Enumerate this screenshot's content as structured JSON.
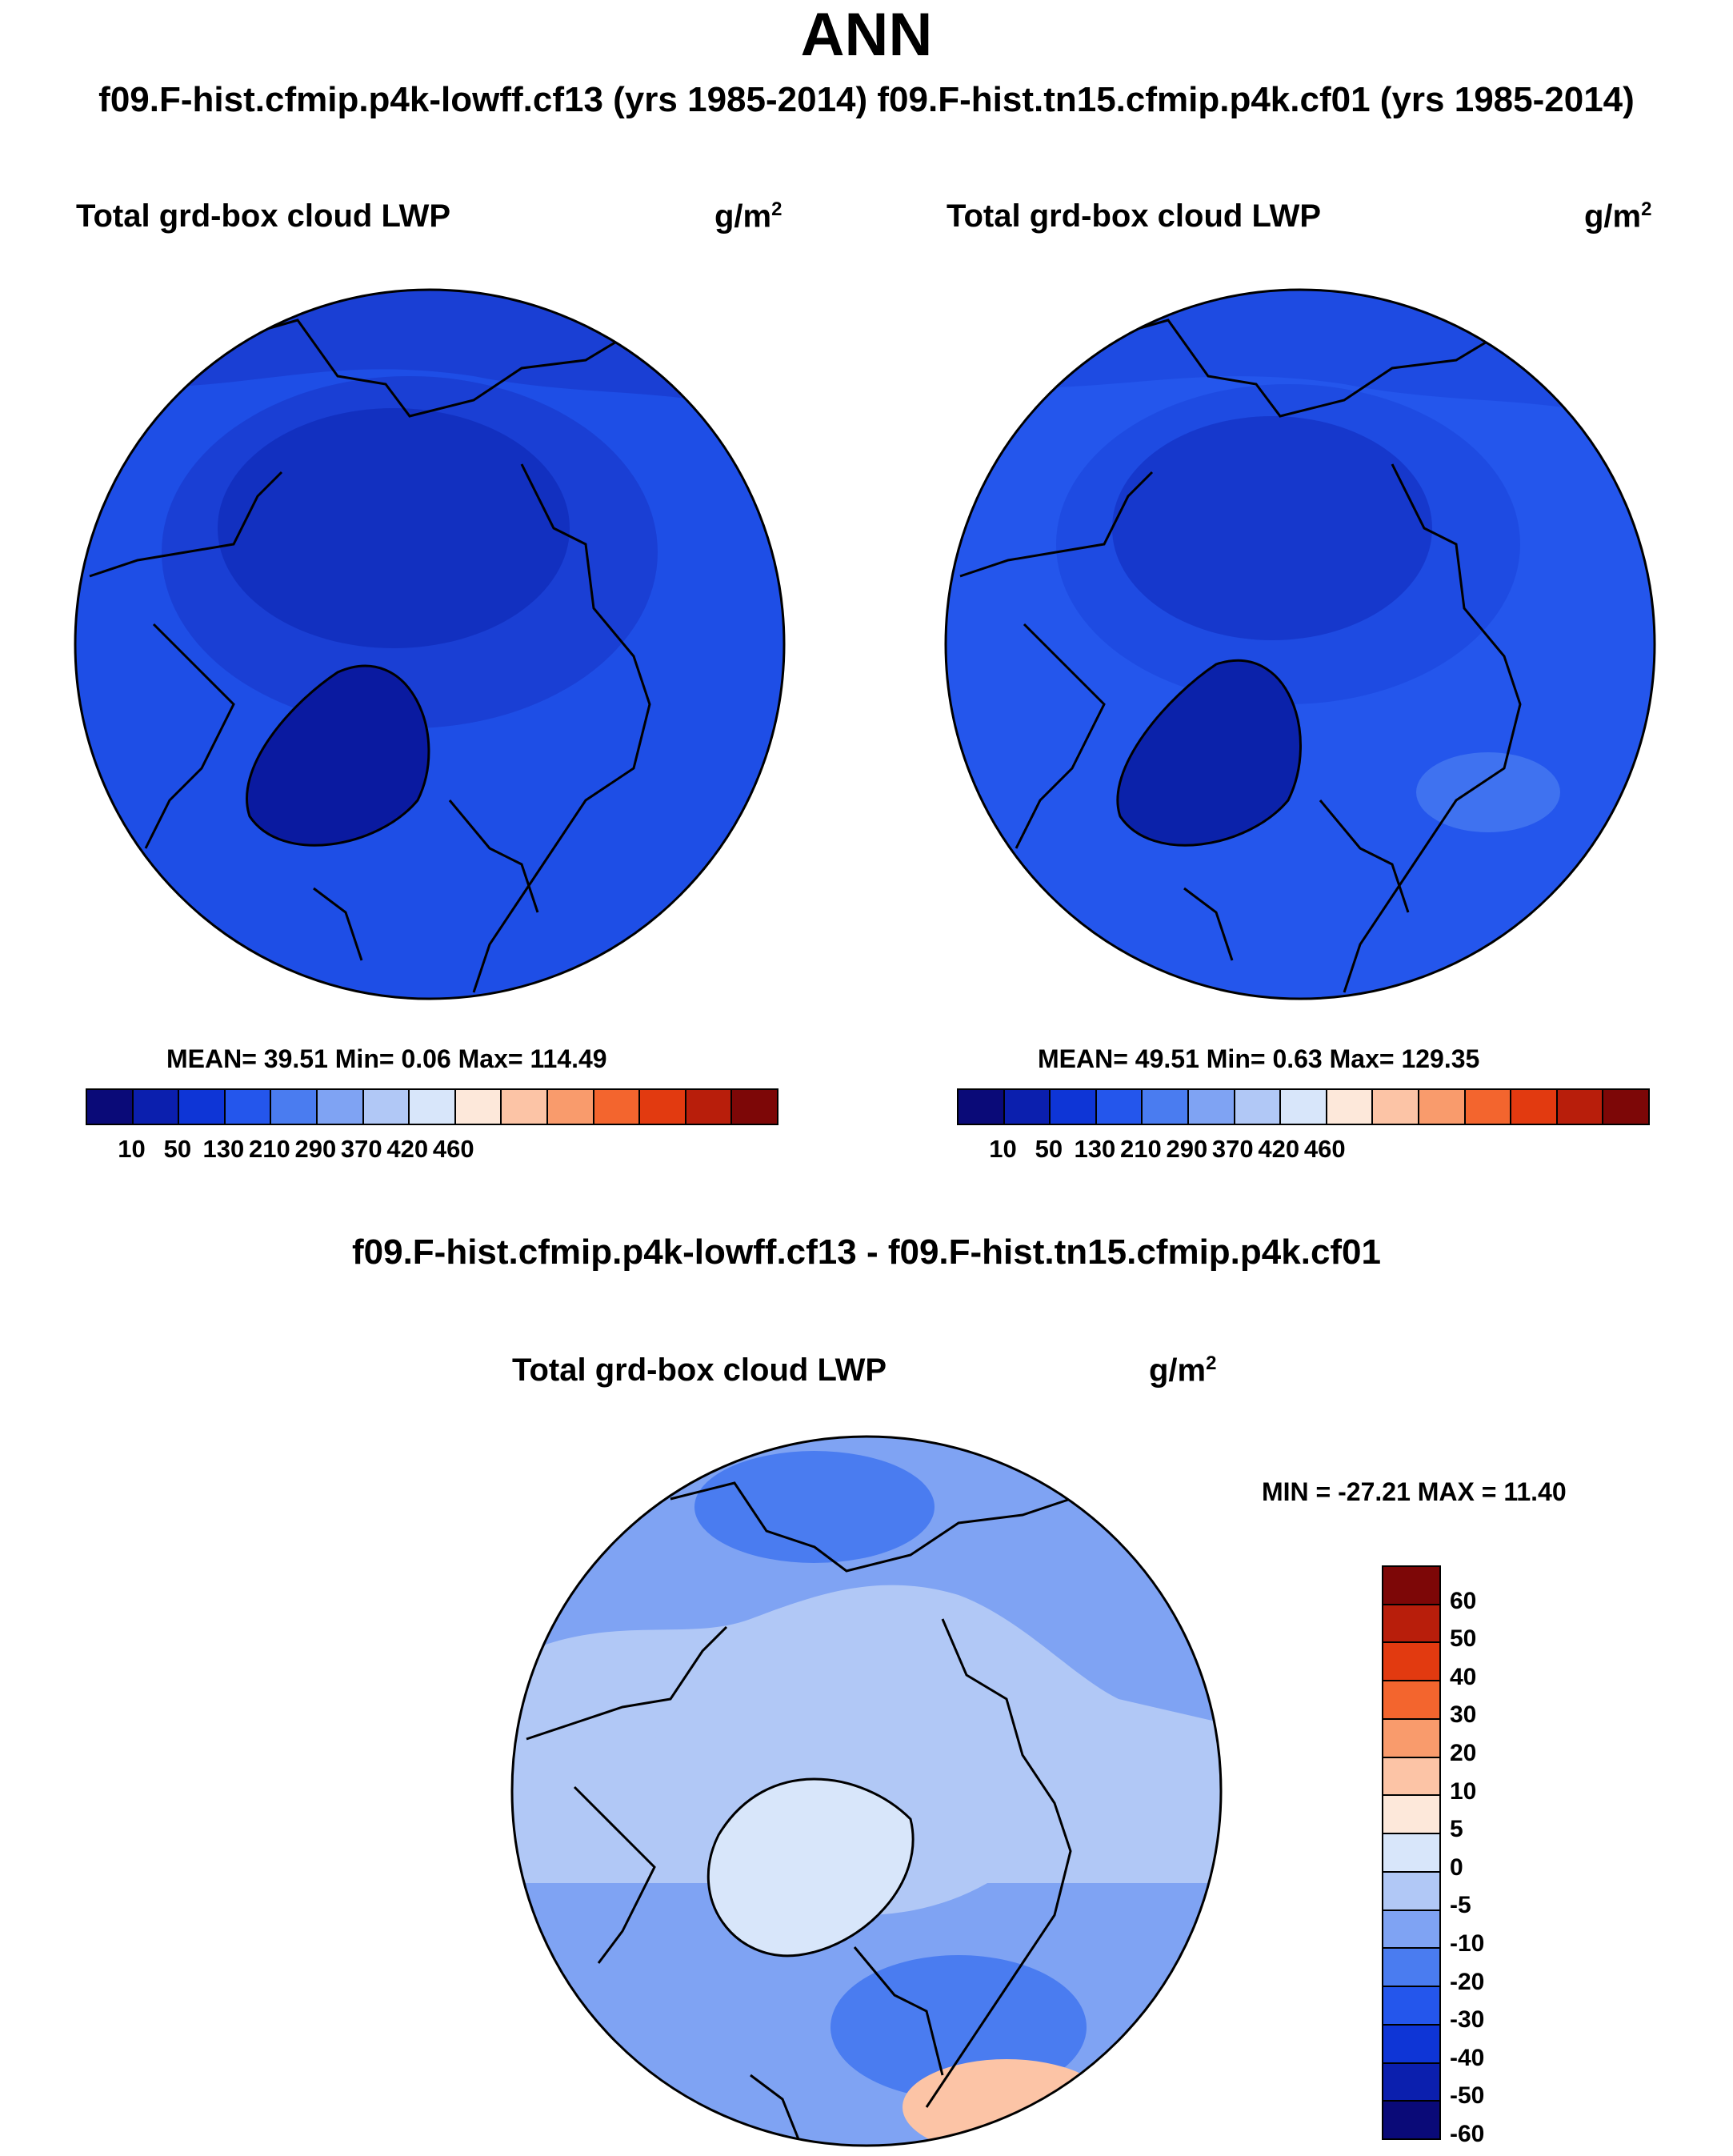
{
  "header": {
    "season": "ANN",
    "cases_line": "f09.F-hist.cfmip.p4k-lowff.cf13 (yrs 1985-2014)  f09.F-hist.tn15.cfmip.p4k.cf01 (yrs 1985-2014)"
  },
  "panel_left": {
    "variable": "Total grd-box cloud LWP",
    "units": "g/m",
    "units_exp": "2",
    "stats": "MEAN=  39.51  Min=   0.06  Max= 114.49"
  },
  "panel_right": {
    "variable": "Total grd-box cloud LWP",
    "units": "g/m",
    "units_exp": "2",
    "stats": "MEAN=  49.51  Min=   0.63  Max= 129.35"
  },
  "abs_colorbar": {
    "colors": [
      "#0a0a78",
      "#0b1fae",
      "#0e35d6",
      "#2456ec",
      "#4a7cf0",
      "#7fa3f3",
      "#b1c8f6",
      "#d8e6fa",
      "#fde8da",
      "#fcc4a6",
      "#f99b6c",
      "#f3652e",
      "#e23a10",
      "#b81e0b",
      "#7d0707"
    ],
    "labels": [
      "10",
      "50",
      "130",
      "210",
      "290",
      "370",
      "420",
      "460"
    ]
  },
  "diff_panel": {
    "title": "f09.F-hist.cfmip.p4k-lowff.cf13 - f09.F-hist.tn15.cfmip.p4k.cf01",
    "variable": "Total grd-box cloud LWP",
    "units": "g/m",
    "units_exp": "2",
    "minmax": "MIN = -27.21 MAX =  11.40"
  },
  "diff_colorbar": {
    "colors_top_to_bottom": [
      "#7d0707",
      "#b81e0b",
      "#e23a10",
      "#f3652e",
      "#f99b6c",
      "#fcc4a6",
      "#fde8da",
      "#d8e6fa",
      "#b1c8f6",
      "#7fa3f3",
      "#4a7cf0",
      "#2456ec",
      "#0e35d6",
      "#0b1fae",
      "#0a0a78"
    ],
    "labels_top_to_bottom": [
      "60",
      "50",
      "40",
      "30",
      "20",
      "10",
      "5",
      "0",
      "-5",
      "-10",
      "-20",
      "-30",
      "-40",
      "-50",
      "-60"
    ]
  },
  "map_colors": {
    "left_ocean": "#1e4ee6",
    "left_mid": "#1a3fd4",
    "left_arctic": "#1230c0",
    "left_greenland": "#0a1aa0",
    "right_ocean": "#2456ec",
    "right_mid": "#1e4be2",
    "right_arctic": "#1638cc",
    "right_greenland": "#0b22aa",
    "right_light": "#3f72f0",
    "diff_base": "#7fa3f3",
    "diff_light": "#b1c8f6",
    "diff_pale": "#d8e6fa",
    "diff_mid": "#4a7cf0",
    "diff_warm": "#fcc4a6"
  }
}
